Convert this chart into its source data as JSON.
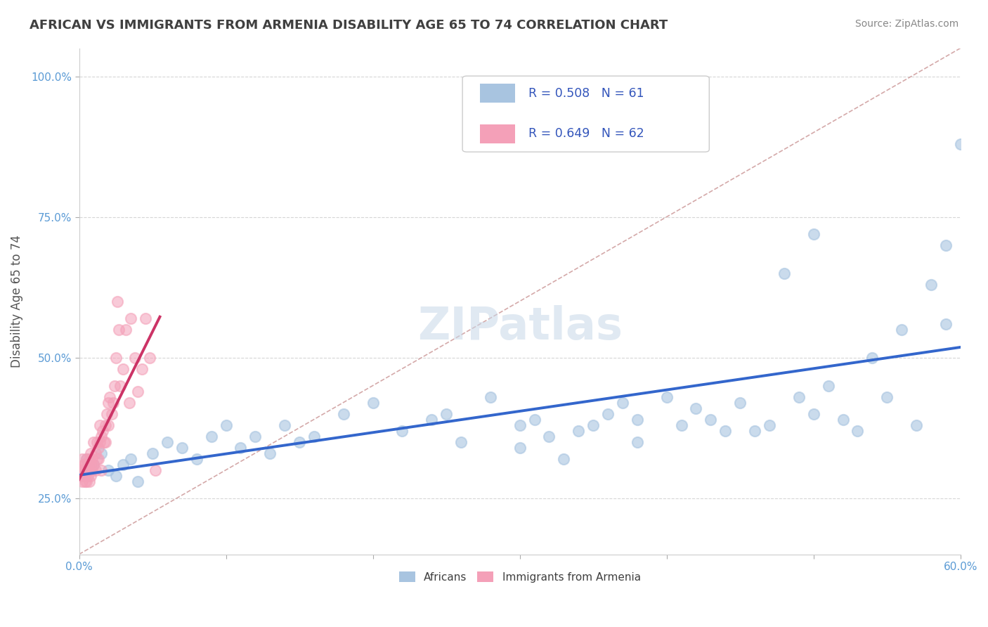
{
  "title": "AFRICAN VS IMMIGRANTS FROM ARMENIA DISABILITY AGE 65 TO 74 CORRELATION CHART",
  "source": "Source: ZipAtlas.com",
  "ylabel": "Disability Age 65 to 74",
  "xlim": [
    0.0,
    0.6
  ],
  "ylim": [
    0.15,
    1.05
  ],
  "xtick_positions": [
    0.0,
    0.1,
    0.2,
    0.3,
    0.4,
    0.5,
    0.6
  ],
  "xtick_labels": [
    "0.0%",
    "",
    "",
    "",
    "",
    "",
    "60.0%"
  ],
  "ytick_positions": [
    0.25,
    0.5,
    0.75,
    1.0
  ],
  "ytick_labels": [
    "25.0%",
    "50.0%",
    "75.0%",
    "100.0%"
  ],
  "legend_r1": "R = 0.508",
  "legend_n1": "N = 61",
  "legend_r2": "R = 0.649",
  "legend_n2": "N = 62",
  "legend_label1": "Africans",
  "legend_label2": "Immigrants from Armenia",
  "color_african": "#a8c4e0",
  "color_armenia": "#f4a0b8",
  "color_line_african": "#3366cc",
  "color_line_armenia": "#cc3366",
  "color_diag": "#d0a0a0",
  "background": "#ffffff",
  "african_x": [
    0.005,
    0.01,
    0.015,
    0.02,
    0.025,
    0.03,
    0.035,
    0.04,
    0.05,
    0.06,
    0.07,
    0.08,
    0.09,
    0.1,
    0.11,
    0.12,
    0.13,
    0.14,
    0.15,
    0.16,
    0.18,
    0.2,
    0.22,
    0.24,
    0.25,
    0.26,
    0.28,
    0.3,
    0.3,
    0.31,
    0.32,
    0.33,
    0.34,
    0.35,
    0.36,
    0.37,
    0.38,
    0.38,
    0.4,
    0.41,
    0.42,
    0.43,
    0.44,
    0.45,
    0.46,
    0.47,
    0.48,
    0.49,
    0.5,
    0.5,
    0.51,
    0.52,
    0.53,
    0.54,
    0.55,
    0.56,
    0.57,
    0.58,
    0.59,
    0.59,
    0.6
  ],
  "african_y": [
    0.32,
    0.31,
    0.33,
    0.3,
    0.29,
    0.31,
    0.32,
    0.28,
    0.33,
    0.35,
    0.34,
    0.32,
    0.36,
    0.38,
    0.34,
    0.36,
    0.33,
    0.38,
    0.35,
    0.36,
    0.4,
    0.42,
    0.37,
    0.39,
    0.4,
    0.35,
    0.43,
    0.34,
    0.38,
    0.39,
    0.36,
    0.32,
    0.37,
    0.38,
    0.4,
    0.42,
    0.39,
    0.35,
    0.43,
    0.38,
    0.41,
    0.39,
    0.37,
    0.42,
    0.37,
    0.38,
    0.65,
    0.43,
    0.4,
    0.72,
    0.45,
    0.39,
    0.37,
    0.5,
    0.43,
    0.55,
    0.38,
    0.63,
    0.7,
    0.56,
    0.88
  ],
  "armenia_x": [
    0.001,
    0.001,
    0.002,
    0.002,
    0.002,
    0.003,
    0.003,
    0.003,
    0.004,
    0.004,
    0.004,
    0.005,
    0.005,
    0.005,
    0.006,
    0.006,
    0.006,
    0.007,
    0.007,
    0.007,
    0.008,
    0.008,
    0.008,
    0.009,
    0.009,
    0.01,
    0.01,
    0.011,
    0.011,
    0.012,
    0.012,
    0.013,
    0.013,
    0.014,
    0.014,
    0.015,
    0.015,
    0.016,
    0.017,
    0.018,
    0.018,
    0.019,
    0.02,
    0.02,
    0.021,
    0.022,
    0.023,
    0.024,
    0.025,
    0.026,
    0.027,
    0.028,
    0.03,
    0.032,
    0.034,
    0.035,
    0.038,
    0.04,
    0.043,
    0.045,
    0.048,
    0.052
  ],
  "armenia_y": [
    0.3,
    0.29,
    0.28,
    0.3,
    0.32,
    0.29,
    0.31,
    0.3,
    0.28,
    0.29,
    0.31,
    0.3,
    0.28,
    0.32,
    0.29,
    0.31,
    0.3,
    0.3,
    0.32,
    0.28,
    0.31,
    0.33,
    0.29,
    0.3,
    0.32,
    0.31,
    0.35,
    0.3,
    0.33,
    0.32,
    0.35,
    0.34,
    0.32,
    0.38,
    0.35,
    0.3,
    0.36,
    0.37,
    0.35,
    0.38,
    0.35,
    0.4,
    0.42,
    0.38,
    0.43,
    0.4,
    0.42,
    0.45,
    0.5,
    0.6,
    0.55,
    0.45,
    0.48,
    0.55,
    0.42,
    0.57,
    0.5,
    0.44,
    0.48,
    0.57,
    0.5,
    0.3
  ]
}
